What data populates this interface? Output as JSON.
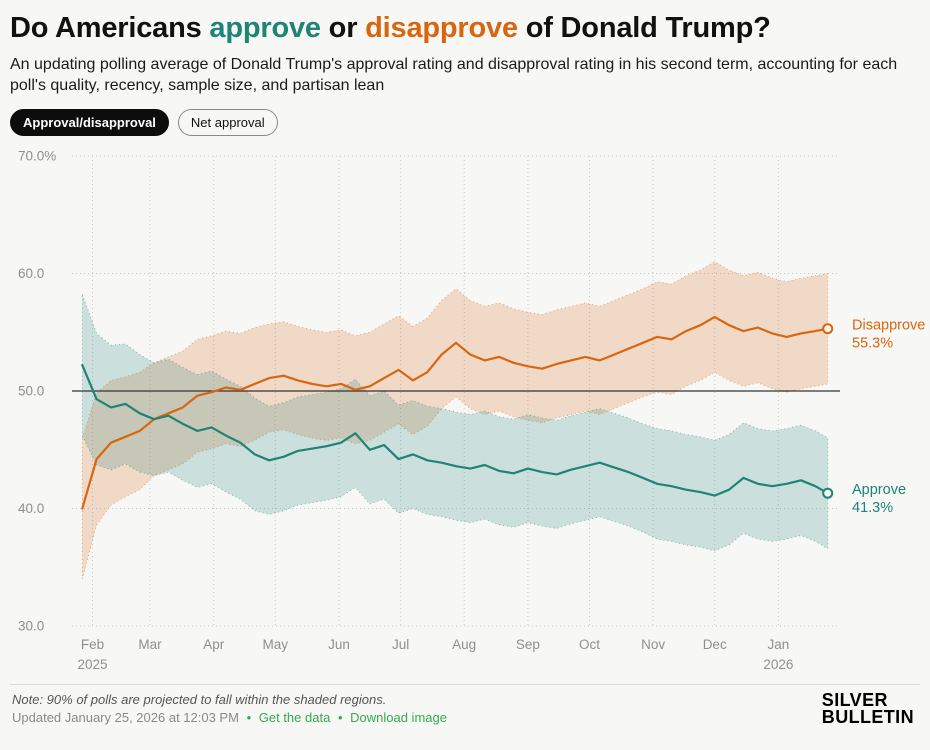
{
  "page": {
    "title": {
      "prefix": "Do Americans ",
      "approve_word": "approve",
      "middle": " or ",
      "disapprove_word": "disapprove",
      "suffix": " of Donald Trump?"
    },
    "subtitle": "An updating polling average of Donald Trump's approval rating and disapproval rating in his second term, accounting for each poll's quality, recency, sample size, and partisan lean"
  },
  "toggles": [
    {
      "label": "Approval/disapproval",
      "active": true
    },
    {
      "label": "Net approval",
      "active": false
    }
  ],
  "colors": {
    "approve_teal": "#1e8476",
    "disapprove_orange": "#d9660e",
    "link_green": "#33ab51",
    "reference_black": "#333333",
    "grid_gray": "#c9c9c7",
    "background": "#f7f7f5"
  },
  "footer": {
    "note": "Note: 90% of polls are projected to fall within the shaded regions.",
    "updated": "Updated January 25, 2026 at 12:03 PM",
    "separator": "•",
    "link_get_data": "Get the data",
    "link_download": "Download image",
    "logo_line1": "SILVER",
    "logo_line2": "BULLETIN"
  },
  "chart_data": {
    "type": "line",
    "title": "Do Americans approve or disapprove of Donald Trump?",
    "xlabel": "",
    "ylabel": "",
    "ylim": [
      30,
      70
    ],
    "x_range": [
      "2025-01-22",
      "2026-01-31"
    ],
    "reference_line": 50,
    "grid": "dotted",
    "legend_position": "end-of-line labels at right",
    "band_meaning": "90% of polls are projected to fall within the shaded regions",
    "yticks": [
      {
        "value": 70,
        "label": "70.0%"
      },
      {
        "value": 60,
        "label": "60.0"
      },
      {
        "value": 50,
        "label": "50.0"
      },
      {
        "value": 40,
        "label": "40.0"
      },
      {
        "value": 30,
        "label": "30.0"
      }
    ],
    "xticks": [
      {
        "date": "2025-02-01",
        "label": "Feb",
        "sublabel": "2025"
      },
      {
        "date": "2025-03-01",
        "label": "Mar"
      },
      {
        "date": "2025-04-01",
        "label": "Apr"
      },
      {
        "date": "2025-05-01",
        "label": "May"
      },
      {
        "date": "2025-06-01",
        "label": "Jun"
      },
      {
        "date": "2025-07-01",
        "label": "Jul"
      },
      {
        "date": "2025-08-01",
        "label": "Aug"
      },
      {
        "date": "2025-09-01",
        "label": "Sep"
      },
      {
        "date": "2025-10-01",
        "label": "Oct"
      },
      {
        "date": "2025-11-01",
        "label": "Nov"
      },
      {
        "date": "2025-12-01",
        "label": "Dec"
      },
      {
        "date": "2026-01-01",
        "label": "Jan",
        "sublabel": "2026"
      }
    ],
    "dates": [
      "2025-01-27",
      "2025-02-03",
      "2025-02-10",
      "2025-02-17",
      "2025-02-24",
      "2025-03-03",
      "2025-03-10",
      "2025-03-17",
      "2025-03-24",
      "2025-03-31",
      "2025-04-07",
      "2025-04-14",
      "2025-04-21",
      "2025-04-28",
      "2025-05-05",
      "2025-05-12",
      "2025-05-19",
      "2025-05-26",
      "2025-06-02",
      "2025-06-09",
      "2025-06-16",
      "2025-06-23",
      "2025-06-30",
      "2025-07-07",
      "2025-07-14",
      "2025-07-21",
      "2025-07-28",
      "2025-08-04",
      "2025-08-11",
      "2025-08-18",
      "2025-08-25",
      "2025-09-01",
      "2025-09-08",
      "2025-09-15",
      "2025-09-22",
      "2025-09-29",
      "2025-10-06",
      "2025-10-13",
      "2025-10-20",
      "2025-10-27",
      "2025-11-03",
      "2025-11-10",
      "2025-11-17",
      "2025-11-24",
      "2025-12-01",
      "2025-12-08",
      "2025-12-15",
      "2025-12-22",
      "2025-12-29",
      "2026-01-05",
      "2026-01-12",
      "2026-01-19",
      "2026-01-25"
    ],
    "band_halfwidth": [
      6.0,
      5.6,
      5.3,
      5.1,
      5.0,
      4.8,
      4.8,
      4.8,
      4.8,
      4.8,
      4.8,
      4.8,
      4.8,
      4.6,
      4.6,
      4.6,
      4.6,
      4.6,
      4.6,
      4.6,
      4.6,
      4.6,
      4.6,
      4.6,
      4.6,
      4.6,
      4.6,
      4.6,
      4.6,
      4.6,
      4.6,
      4.6,
      4.6,
      4.6,
      4.6,
      4.6,
      4.6,
      4.6,
      4.6,
      4.6,
      4.7,
      4.7,
      4.7,
      4.7,
      4.7,
      4.7,
      4.7,
      4.7,
      4.7,
      4.7,
      4.7,
      4.7,
      4.7
    ],
    "series": [
      {
        "name": "Disapprove",
        "color": "#d9660e",
        "end_value": 55.3,
        "end_label": "55.3%",
        "values": [
          40.0,
          44.2,
          45.6,
          46.1,
          46.6,
          47.6,
          48.1,
          48.6,
          49.6,
          49.9,
          50.3,
          50.1,
          50.6,
          51.1,
          51.3,
          50.9,
          50.6,
          50.4,
          50.6,
          50.1,
          50.4,
          51.1,
          51.8,
          50.9,
          51.6,
          53.1,
          54.1,
          53.1,
          52.6,
          52.9,
          52.4,
          52.1,
          51.9,
          52.3,
          52.6,
          52.9,
          52.6,
          53.1,
          53.6,
          54.1,
          54.6,
          54.4,
          55.1,
          55.6,
          56.3,
          55.6,
          55.1,
          55.4,
          54.9,
          54.6,
          54.9,
          55.1,
          55.3
        ]
      },
      {
        "name": "Approve",
        "color": "#1e8476",
        "end_value": 41.3,
        "end_label": "41.3%",
        "values": [
          52.2,
          49.3,
          48.6,
          48.9,
          48.1,
          47.6,
          47.9,
          47.2,
          46.6,
          46.9,
          46.2,
          45.6,
          44.6,
          44.1,
          44.4,
          44.9,
          45.1,
          45.3,
          45.6,
          46.4,
          45.0,
          45.4,
          44.2,
          44.6,
          44.1,
          43.9,
          43.6,
          43.4,
          43.7,
          43.2,
          43.0,
          43.4,
          43.1,
          42.9,
          43.3,
          43.6,
          43.9,
          43.5,
          43.1,
          42.6,
          42.1,
          41.9,
          41.6,
          41.4,
          41.1,
          41.6,
          42.6,
          42.1,
          41.9,
          42.1,
          42.4,
          41.9,
          41.3
        ]
      }
    ]
  }
}
